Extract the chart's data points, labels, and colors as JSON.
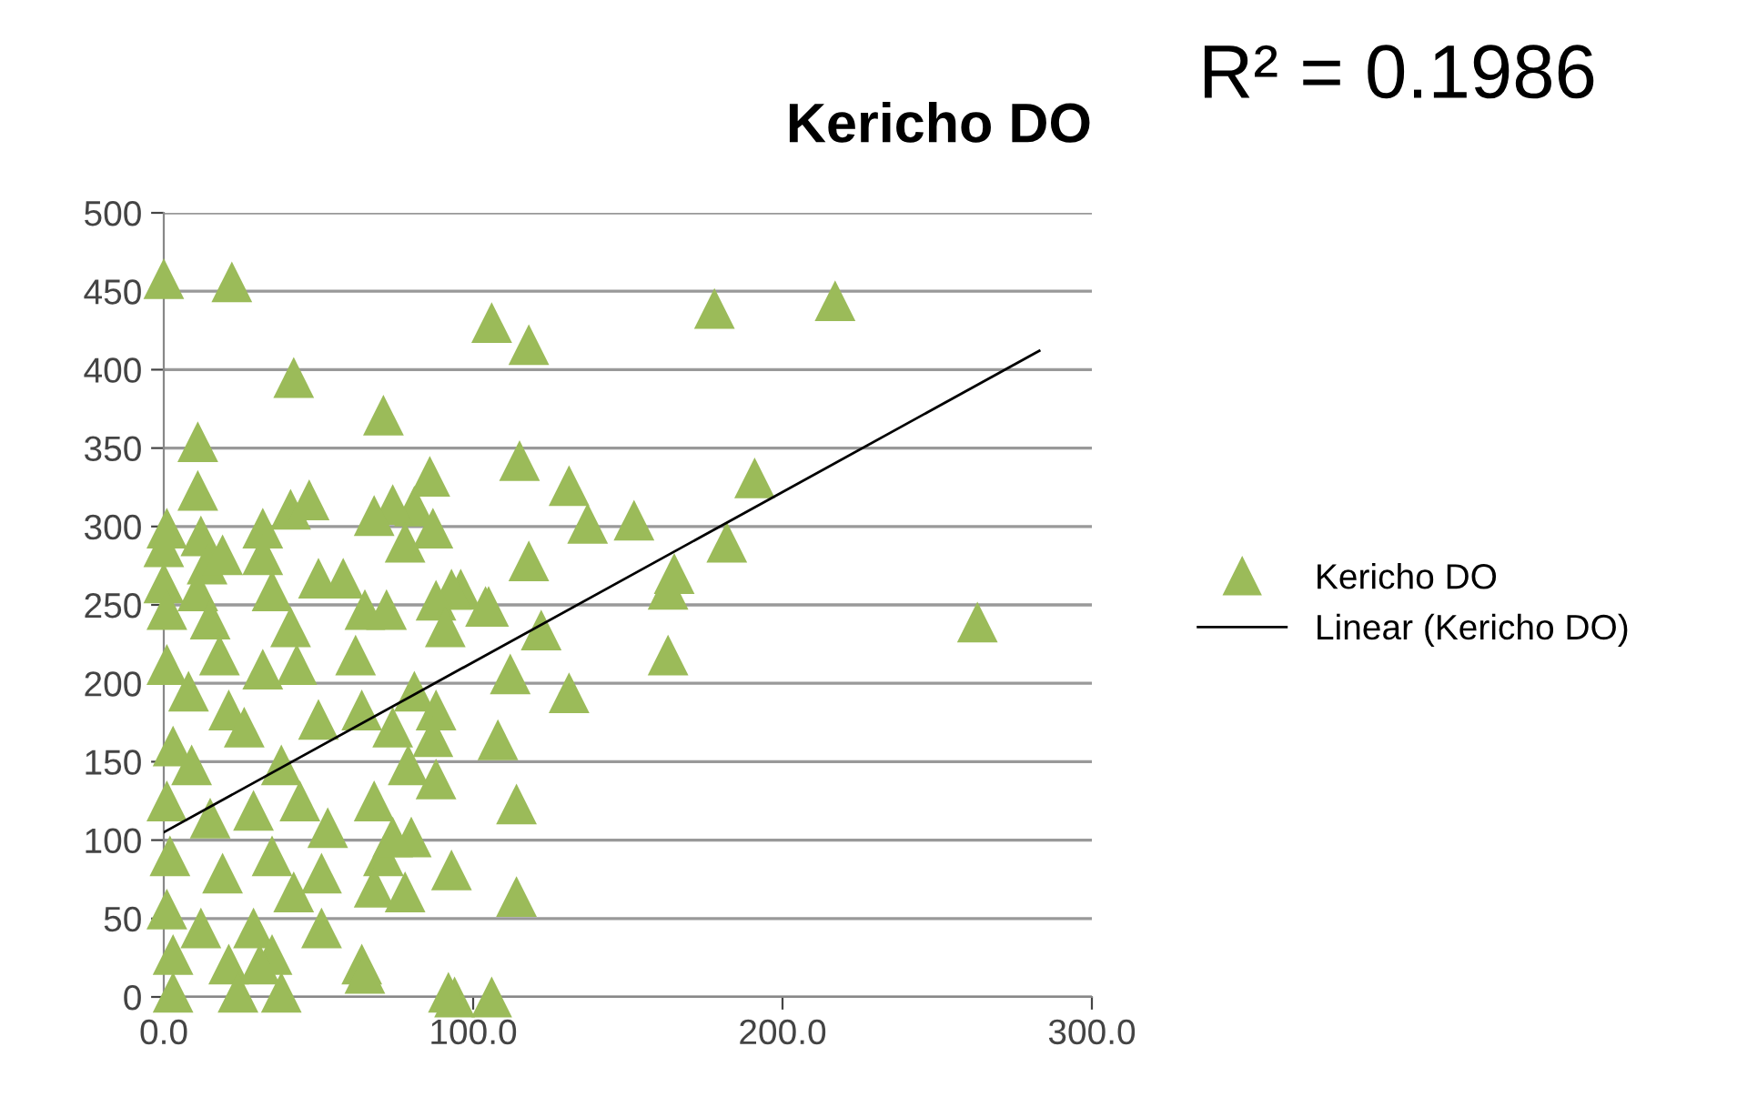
{
  "chart_data": {
    "type": "scatter",
    "title": "Kericho DO",
    "annotations": [
      "R² = 0.1986"
    ],
    "xlim": [
      0,
      300
    ],
    "xticks": [
      {
        "value": 0,
        "label": "0.0"
      },
      {
        "value": 100,
        "label": "100.0"
      },
      {
        "value": 200,
        "label": "200.0"
      },
      {
        "value": 300,
        "label": "300.0"
      }
    ],
    "ylim": [
      0,
      500
    ],
    "yticks": [
      0,
      50,
      100,
      150,
      200,
      250,
      300,
      350,
      400,
      450,
      500
    ],
    "grid": "y",
    "legend": "right",
    "marker": "triangle",
    "series": [
      {
        "name": "Kericho DO",
        "color": "#9bbb59",
        "x": [
          0,
          22,
          42,
          11,
          71,
          106,
          118,
          178,
          217,
          263,
          191,
          182,
          163,
          165,
          163,
          115,
          131,
          137,
          152,
          118,
          104,
          122,
          112,
          131,
          108,
          114,
          114,
          106,
          94,
          86,
          81,
          74,
          68,
          87,
          96,
          93,
          105,
          0,
          1,
          0,
          1,
          1,
          3,
          1,
          2,
          1,
          3,
          3,
          11,
          12,
          14,
          11,
          15,
          8,
          18,
          21,
          9,
          15,
          19,
          12,
          21,
          24,
          19,
          32,
          32,
          35,
          41,
          32,
          41,
          43,
          26,
          38,
          29,
          44,
          35,
          42,
          29,
          35,
          38,
          31,
          47,
          50,
          58,
          65,
          72,
          62,
          50,
          64,
          74,
          81,
          79,
          68,
          53,
          51,
          71,
          68,
          78,
          51,
          64,
          65,
          88,
          91,
          88,
          87,
          88,
          80,
          74,
          93,
          92,
          78
        ],
        "values": [
          458,
          456,
          395,
          354,
          371,
          430,
          416,
          439,
          444,
          239,
          331,
          290,
          260,
          270,
          218,
          342,
          326,
          302,
          304,
          278,
          249,
          234,
          206,
          194,
          164,
          123,
          64,
          0,
          0,
          332,
          313,
          314,
          307,
          299,
          260,
          260,
          249,
          287,
          299,
          264,
          247,
          212,
          160,
          125,
          90,
          56,
          27,
          3,
          323,
          294,
          276,
          259,
          241,
          195,
          218,
          183,
          148,
          114,
          79,
          44,
          21,
          3,
          282,
          299,
          282,
          259,
          311,
          209,
          236,
          212,
          172,
          148,
          119,
          125,
          90,
          67,
          44,
          27,
          3,
          21,
          317,
          267,
          267,
          247,
          247,
          218,
          177,
          183,
          172,
          195,
          148,
          125,
          108,
          79,
          90,
          70,
          67,
          44,
          21,
          15,
          253,
          236,
          183,
          166,
          139,
          102,
          102,
          81,
          3,
          290
        ]
      },
      {
        "name": "Linear (Kericho DO)",
        "type": "line",
        "color": "#000000",
        "marker": "none",
        "line_style": "solid",
        "x": [
          0,
          283
        ],
        "values": [
          105,
          412
        ]
      }
    ]
  }
}
